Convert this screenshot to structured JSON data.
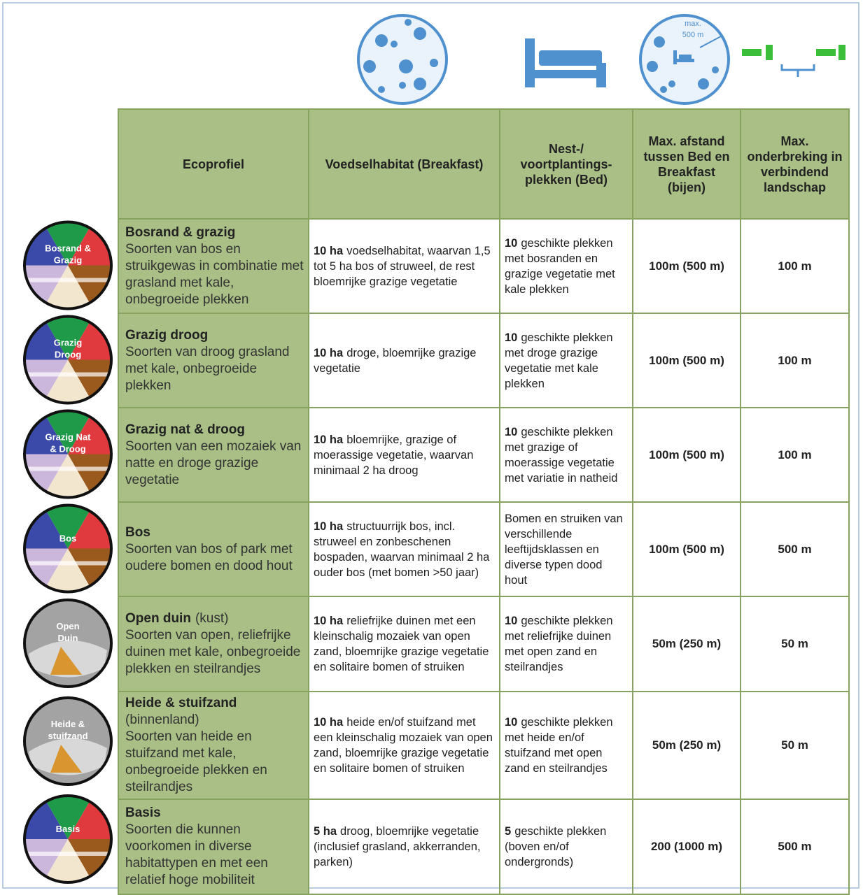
{
  "icons": {
    "distance_label": [
      "max.",
      "500 m"
    ]
  },
  "table": {
    "headers": [
      "Ecoprofiel",
      "Voedselhabitat (Breakfast)",
      "Nest-/ voortplantings- plekken (Bed)",
      "Max. afstand tussen Bed en Breakfast (bijen)",
      "Max. onderbreking in verbindend landschap"
    ],
    "rows": [
      {
        "badge": "Bosrand & Grazig",
        "name": "Bosrand & grazig",
        "description": "Soorten van bos en struikgewas in combinatie met grasland met kale, onbegroeide plekken",
        "breakfast": {
          "bold": "10 ha",
          "text": "voedselhabitat, waarvan 1,5 tot 5 ha bos of struweel, de rest bloemrijke grazige vegetatie"
        },
        "bed": {
          "bold": "10",
          "text": "geschikte plekken met bosranden en grazige vegetatie met kale plekken"
        },
        "distance": "100m (500 m)",
        "gap": "100 m"
      },
      {
        "badge": "Grazig Droog",
        "name": "Grazig droog",
        "description": "Soorten van droog grasland met kale, onbegroeide plekken",
        "breakfast": {
          "bold": "10 ha",
          "text": "droge, bloemrijke grazige vegetatie"
        },
        "bed": {
          "bold": "10",
          "text": "geschikte plekken met droge grazige vegetatie met kale plekken"
        },
        "distance": "100m (500 m)",
        "gap": "100 m"
      },
      {
        "badge": "Grazig Nat & Droog",
        "name": "Grazig nat & droog",
        "description": "Soorten van een mozaiek van natte en droge grazige vegetatie",
        "breakfast": {
          "bold": "10 ha",
          "text": "bloemrijke, grazige of moerassige vegetatie, waarvan minimaal 2 ha droog"
        },
        "bed": {
          "bold": "10",
          "text": "geschikte plekken met grazige of moerassige vegetatie met variatie in natheid"
        },
        "distance": "100m (500 m)",
        "gap": "100 m"
      },
      {
        "badge": "Bos",
        "name": "Bos",
        "description": "Soorten van bos of park met oudere bomen en dood hout",
        "breakfast": {
          "bold": "10 ha",
          "text": "structuurrijk bos, incl. struweel en zonbeschenen bospaden, waarvan minimaal 2 ha ouder bos (met bomen >50 jaar)"
        },
        "bed": {
          "text": "Bomen en struiken van verschillende leeftijdsklassen en diverse typen dood hout"
        },
        "distance": "100m (500 m)",
        "gap": "500 m"
      },
      {
        "badge": "Open Duin",
        "gray": true,
        "name": "Open duin",
        "name_note": "(kust)",
        "description": "Soorten van open, reliefrijke duinen met kale, onbegroeide plekken en steilrandjes",
        "breakfast": {
          "bold": "10 ha",
          "text": "reliefrijke duinen met een kleinschalig mozaiek van open zand, bloemrijke grazige vegetatie en solitaire bomen of struiken"
        },
        "bed": {
          "bold": "10",
          "text": "geschikte plekken met reliefrijke duinen met open zand en steilrandjes"
        },
        "distance": "50m (250 m)",
        "gap": "50 m"
      },
      {
        "badge": "Heide & stuifzand",
        "gray": true,
        "name": "Heide & stuifzand",
        "name_note": "(binnenland)",
        "description": "Soorten van heide en stuifzand met kale, onbegroeide plekken en steilrandjes",
        "breakfast": {
          "bold": "10 ha",
          "text": "heide en/of stuifzand met een kleinschalig mozaiek van open zand, bloemrijke grazige vegetatie en solitaire bomen of struiken"
        },
        "bed": {
          "bold": "10",
          "text": "geschikte plekken met heide en/of stuifzand met open zand en steilrandjes"
        },
        "distance": "50m (250 m)",
        "gap": "50 m"
      },
      {
        "badge": "Basis",
        "name": "Basis",
        "description": "Soorten die kunnen voorkomen in diverse habitattypen en met een relatief hoge mobiliteit",
        "breakfast": {
          "bold": "5 ha",
          "text": "droog, bloemrijke vegetatie (inclusief grasland, akkerranden, parken)"
        },
        "bed": {
          "bold": "5",
          "text": "geschikte plekken (boven en/of ondergronds)"
        },
        "distance": "200 (1000 m)",
        "gap": "500 m"
      }
    ]
  }
}
